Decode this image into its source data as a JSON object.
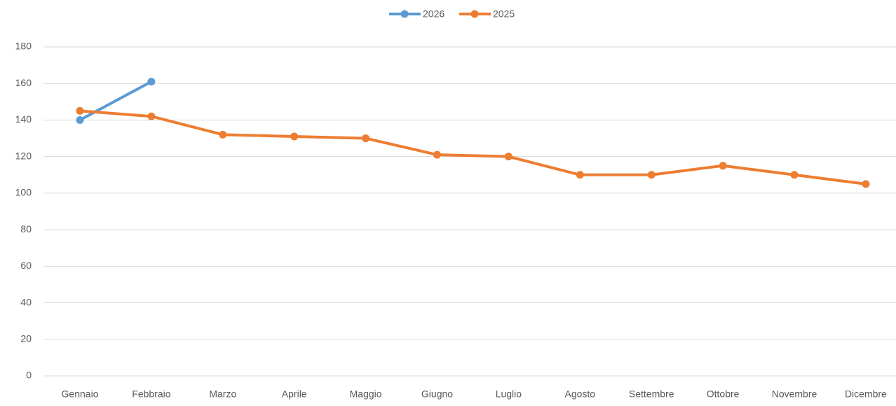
{
  "chart_data": {
    "type": "line",
    "categories": [
      "Gennaio",
      "Febbraio",
      "Marzo",
      "Aprile",
      "Maggio",
      "Giugno",
      "Luglio",
      "Agosto",
      "Settembre",
      "Ottobre",
      "Novembre",
      "Dicembre"
    ],
    "series": [
      {
        "name": "2026",
        "color": "#5b9bd5",
        "values": [
          140,
          161,
          null,
          null,
          null,
          null,
          null,
          null,
          null,
          null,
          null,
          null
        ]
      },
      {
        "name": "2025",
        "color": "#ed7d31",
        "values": [
          145,
          142,
          132,
          131,
          130,
          121,
          120,
          110,
          110,
          115,
          110,
          105
        ]
      }
    ],
    "ylim": [
      0,
      180
    ],
    "yticks": [
      0,
      20,
      40,
      60,
      80,
      100,
      120,
      140,
      160,
      180
    ],
    "grid": true,
    "legend": "top"
  }
}
